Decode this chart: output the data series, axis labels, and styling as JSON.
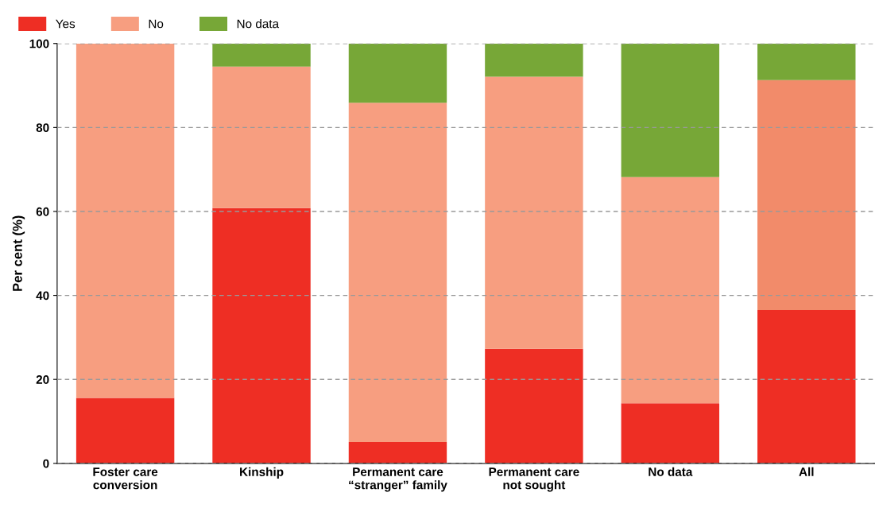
{
  "chart_data": {
    "type": "bar",
    "stacked": true,
    "ylabel": "Per cent (%)",
    "categories": [
      "Foster care\nconversion",
      "Kinship",
      "Permanent care\n“stranger” family",
      "Permanent care\nnot sought",
      "No data",
      "All"
    ],
    "series": [
      {
        "name": "Yes",
        "color": "#ee2e24",
        "values": [
          15.6,
          60.8,
          5.1,
          27.3,
          14.3,
          36.5
        ]
      },
      {
        "name": "No",
        "color": "#f79e80",
        "colors": [
          "#f79e80",
          "#f79e80",
          "#f79e80",
          "#f79e80",
          "#f79e80",
          "#f28b6a"
        ],
        "values": [
          84.4,
          33.7,
          80.8,
          64.8,
          53.9,
          54.8
        ]
      },
      {
        "name": "No data",
        "color": "#77a737",
        "values": [
          0,
          5.5,
          14.1,
          7.9,
          31.8,
          8.7
        ]
      }
    ],
    "ylim": [
      0,
      100
    ],
    "yticks": [
      0,
      20,
      40,
      60,
      80,
      100
    ],
    "grid": "y",
    "legend": "top left"
  }
}
